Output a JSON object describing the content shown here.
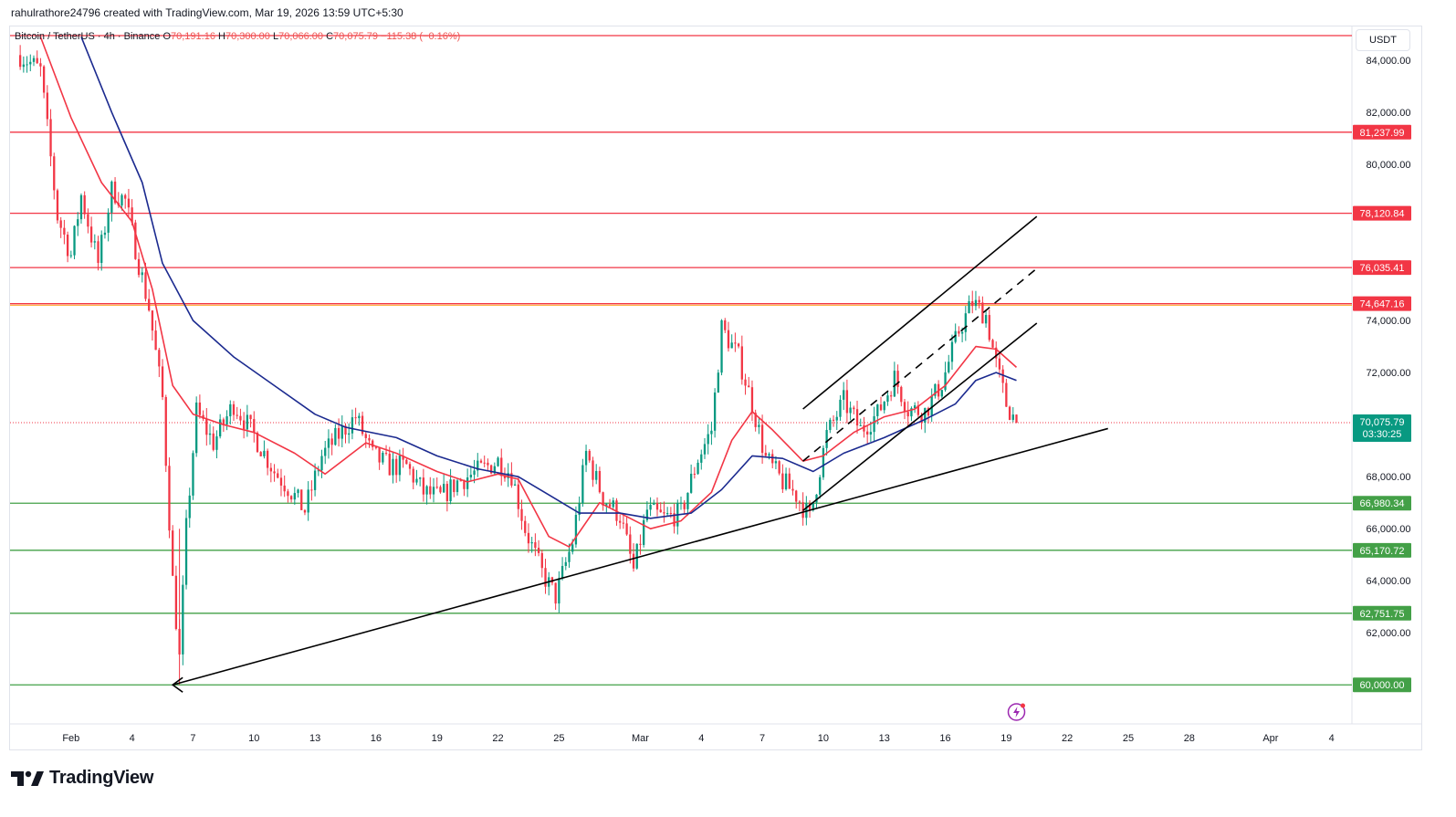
{
  "header": {
    "credit": "rahulrathore24796 created with TradingView.com, Mar 19, 2026 13:59 UTC+5:30",
    "symbol": "Bitcoin / TetherUS · 4h · Binance",
    "open_label": "O",
    "open": "70,191.16",
    "high_label": "H",
    "high": "70,300.00",
    "low_label": "L",
    "low": "70,066.00",
    "close_label": "C",
    "close": "70,075.79",
    "change": "−115.38 (−0.16%)"
  },
  "price_unit": "USDT",
  "brand": "TradingView",
  "colors": {
    "up": "#089981",
    "down": "#f23645",
    "ema_fast": "#f23645",
    "ema_slow": "#1b2a8f",
    "resistance": "#f23645",
    "support": "#43a047",
    "trend": "#000000"
  },
  "chart_data": {
    "type": "candlestick",
    "timeframe": "4h",
    "x_range": [
      "2026-01-29T00:00",
      "2026-04-05T00:00"
    ],
    "ylim": [
      58500,
      85300
    ],
    "y_ticks": [
      {
        "value": 84000,
        "label": "84,000.00"
      },
      {
        "value": 82000,
        "label": "82,000.00"
      },
      {
        "value": 80000,
        "label": "80,000.00"
      },
      {
        "value": 74000,
        "label": "74,000.00"
      },
      {
        "value": 72000,
        "label": "72,000.00"
      },
      {
        "value": 68000,
        "label": "68,000.00"
      },
      {
        "value": 66000,
        "label": "66,000.00"
      },
      {
        "value": 64000,
        "label": "64,000.00"
      },
      {
        "value": 62000,
        "label": "62,000.00"
      }
    ],
    "x_ticks": [
      {
        "date": "2026-02-01",
        "label": "Feb"
      },
      {
        "date": "2026-02-04",
        "label": "4"
      },
      {
        "date": "2026-02-07",
        "label": "7"
      },
      {
        "date": "2026-02-10",
        "label": "10"
      },
      {
        "date": "2026-02-13",
        "label": "13"
      },
      {
        "date": "2026-02-16",
        "label": "16"
      },
      {
        "date": "2026-02-19",
        "label": "19"
      },
      {
        "date": "2026-02-22",
        "label": "22"
      },
      {
        "date": "2026-02-25",
        "label": "25"
      },
      {
        "date": "2026-03-01",
        "label": "Mar"
      },
      {
        "date": "2026-03-04",
        "label": "4"
      },
      {
        "date": "2026-03-07",
        "label": "7"
      },
      {
        "date": "2026-03-10",
        "label": "10"
      },
      {
        "date": "2026-03-13",
        "label": "13"
      },
      {
        "date": "2026-03-16",
        "label": "16"
      },
      {
        "date": "2026-03-19",
        "label": "19"
      },
      {
        "date": "2026-03-22",
        "label": "22"
      },
      {
        "date": "2026-03-25",
        "label": "25"
      },
      {
        "date": "2026-03-28",
        "label": "28"
      },
      {
        "date": "2026-04-01",
        "label": "Apr"
      },
      {
        "date": "2026-04-04",
        "label": "4"
      }
    ],
    "horizontal_levels": [
      {
        "value": 84950,
        "label": "",
        "kind": "resistance"
      },
      {
        "value": 81237.99,
        "label": "81,237.99",
        "kind": "resistance"
      },
      {
        "value": 78120.84,
        "label": "78,120.84",
        "kind": "resistance"
      },
      {
        "value": 76035.41,
        "label": "76,035.41",
        "kind": "resistance"
      },
      {
        "value": 74647.16,
        "label": "74,647.16",
        "kind": "resistance"
      },
      {
        "value": 66980.34,
        "label": "66,980.34",
        "kind": "support"
      },
      {
        "value": 65170.72,
        "label": "65,170.72",
        "kind": "support"
      },
      {
        "value": 62751.75,
        "label": "62,751.75",
        "kind": "support"
      },
      {
        "value": 60000.0,
        "label": "60,000.00",
        "kind": "support"
      }
    ],
    "last_price": {
      "value": 70075.79,
      "label": "70,075.79",
      "countdown": "03:30:25"
    },
    "trendlines": [
      {
        "name": "rising-support",
        "from": [
          "2026-02-06T00:00",
          60000
        ],
        "to": [
          "2026-03-24T00:00",
          69850
        ],
        "style": "solid",
        "arrow_at_start": true
      },
      {
        "name": "channel-upper",
        "from": [
          "2026-03-09T00:00",
          70600
        ],
        "to": [
          "2026-03-20T12:00",
          78000
        ],
        "style": "solid"
      },
      {
        "name": "channel-middle",
        "from": [
          "2026-03-09T00:00",
          68600
        ],
        "to": [
          "2026-03-20T12:00",
          76000
        ],
        "style": "dashed"
      },
      {
        "name": "channel-lower",
        "from": [
          "2026-03-09T00:00",
          66700
        ],
        "to": [
          "2026-03-20T12:00",
          73900
        ],
        "style": "solid"
      }
    ],
    "candles_anchor": [
      [
        "2026-01-29T12:00",
        84200
      ],
      [
        "2026-01-30T12:00",
        83600
      ],
      [
        "2026-01-31T08:00",
        78000
      ],
      [
        "2026-02-01T00:00",
        76500
      ],
      [
        "2026-02-01T12:00",
        78800
      ],
      [
        "2026-02-02T08:00",
        76200
      ],
      [
        "2026-02-03T00:00",
        79000
      ],
      [
        "2026-02-03T16:00",
        78600
      ],
      [
        "2026-02-04T08:00",
        76200
      ],
      [
        "2026-02-04T20:00",
        74500
      ],
      [
        "2026-02-05T12:00",
        71000
      ],
      [
        "2026-02-06T00:00",
        64000
      ],
      [
        "2026-02-06T08:00",
        61000
      ],
      [
        "2026-02-06T16:00",
        66000
      ],
      [
        "2026-02-07T04:00",
        70500
      ],
      [
        "2026-02-08T00:00",
        69300
      ],
      [
        "2026-02-09T00:00",
        70800
      ],
      [
        "2026-02-10T00:00",
        69600
      ],
      [
        "2026-02-11T00:00",
        68200
      ],
      [
        "2026-02-11T16:00",
        67600
      ],
      [
        "2026-02-12T12:00",
        66700
      ],
      [
        "2026-02-13T08:00",
        68800
      ],
      [
        "2026-02-14T04:00",
        69600
      ],
      [
        "2026-02-15T00:00",
        70300
      ],
      [
        "2026-02-15T20:00",
        68800
      ],
      [
        "2026-02-16T16:00",
        68400
      ],
      [
        "2026-02-17T12:00",
        68400
      ],
      [
        "2026-02-18T08:00",
        67400
      ],
      [
        "2026-02-19T04:00",
        67200
      ],
      [
        "2026-02-20T00:00",
        67800
      ],
      [
        "2026-02-21T00:00",
        68200
      ],
      [
        "2026-02-22T00:00",
        68600
      ],
      [
        "2026-02-22T16:00",
        68100
      ],
      [
        "2026-02-23T08:00",
        66000
      ],
      [
        "2026-02-24T04:00",
        64300
      ],
      [
        "2026-02-24T20:00",
        63400
      ],
      [
        "2026-02-25T16:00",
        65500
      ],
      [
        "2026-02-26T08:00",
        68900
      ],
      [
        "2026-02-27T04:00",
        67200
      ],
      [
        "2026-02-28T00:00",
        66500
      ],
      [
        "2026-02-28T16:00",
        64400
      ],
      [
        "2026-03-01T08:00",
        66700
      ],
      [
        "2026-03-02T04:00",
        66400
      ],
      [
        "2026-03-03T00:00",
        66600
      ],
      [
        "2026-03-03T20:00",
        68700
      ],
      [
        "2026-03-04T12:00",
        69800
      ],
      [
        "2026-03-05T00:00",
        73700
      ],
      [
        "2026-03-05T20:00",
        72600
      ],
      [
        "2026-03-06T12:00",
        70800
      ],
      [
        "2026-03-07T04:00",
        68700
      ],
      [
        "2026-03-08T00:00",
        67800
      ],
      [
        "2026-03-08T16:00",
        67300
      ],
      [
        "2026-03-09T08:00",
        66400
      ],
      [
        "2026-03-10T04:00",
        69600
      ],
      [
        "2026-03-11T00:00",
        70900
      ],
      [
        "2026-03-11T20:00",
        69800
      ],
      [
        "2026-03-12T16:00",
        70400
      ],
      [
        "2026-03-13T12:00",
        71800
      ],
      [
        "2026-03-14T04:00",
        70600
      ],
      [
        "2026-03-15T00:00",
        70500
      ],
      [
        "2026-03-15T20:00",
        71600
      ],
      [
        "2026-03-16T16:00",
        73600
      ],
      [
        "2026-03-17T08:00",
        74700
      ],
      [
        "2026-03-18T00:00",
        74200
      ],
      [
        "2026-03-18T12:00",
        72300
      ],
      [
        "2026-03-19T00:00",
        70800
      ],
      [
        "2026-03-19T12:00",
        70075.79
      ]
    ],
    "ema_fast_anchor": [
      [
        "2026-01-30T12:00",
        84900
      ],
      [
        "2026-02-01T00:00",
        81800
      ],
      [
        "2026-02-02T12:00",
        79300
      ],
      [
        "2026-02-04T00:00",
        77800
      ],
      [
        "2026-02-05T00:00",
        75200
      ],
      [
        "2026-02-06T00:00",
        71500
      ],
      [
        "2026-02-07T00:00",
        70400
      ],
      [
        "2026-02-08T12:00",
        70000
      ],
      [
        "2026-02-10T00:00",
        69700
      ],
      [
        "2026-02-12T00:00",
        68900
      ],
      [
        "2026-02-13T12:00",
        68100
      ],
      [
        "2026-02-14T12:00",
        68700
      ],
      [
        "2026-02-15T12:00",
        69300
      ],
      [
        "2026-02-17T00:00",
        68900
      ],
      [
        "2026-02-19T00:00",
        68200
      ],
      [
        "2026-02-20T12:00",
        67800
      ],
      [
        "2026-02-22T00:00",
        68100
      ],
      [
        "2026-02-23T00:00",
        67900
      ],
      [
        "2026-02-24T12:00",
        65700
      ],
      [
        "2026-02-25T12:00",
        65300
      ],
      [
        "2026-02-27T00:00",
        67000
      ],
      [
        "2026-02-28T12:00",
        66400
      ],
      [
        "2026-03-01T12:00",
        66000
      ],
      [
        "2026-03-03T00:00",
        66300
      ],
      [
        "2026-03-04T12:00",
        67400
      ],
      [
        "2026-03-05T12:00",
        69400
      ],
      [
        "2026-03-06T12:00",
        70500
      ],
      [
        "2026-03-07T12:00",
        69800
      ],
      [
        "2026-03-09T00:00",
        68600
      ],
      [
        "2026-03-10T00:00",
        68800
      ],
      [
        "2026-03-11T12:00",
        69700
      ],
      [
        "2026-03-13T00:00",
        70300
      ],
      [
        "2026-03-14T12:00",
        70600
      ],
      [
        "2026-03-16T00:00",
        71500
      ],
      [
        "2026-03-17T12:00",
        73000
      ],
      [
        "2026-03-18T12:00",
        72900
      ],
      [
        "2026-03-19T12:00",
        72200
      ]
    ],
    "ema_slow_anchor": [
      [
        "2026-02-01T12:00",
        84900
      ],
      [
        "2026-02-03T00:00",
        82000
      ],
      [
        "2026-02-04T12:00",
        79300
      ],
      [
        "2026-02-05T12:00",
        76200
      ],
      [
        "2026-02-07T00:00",
        74000
      ],
      [
        "2026-02-09T00:00",
        72600
      ],
      [
        "2026-02-11T00:00",
        71500
      ],
      [
        "2026-02-13T00:00",
        70400
      ],
      [
        "2026-02-14T12:00",
        69900
      ],
      [
        "2026-02-17T00:00",
        69500
      ],
      [
        "2026-02-19T00:00",
        68800
      ],
      [
        "2026-02-21T00:00",
        68300
      ],
      [
        "2026-02-23T00:00",
        68000
      ],
      [
        "2026-02-24T12:00",
        67300
      ],
      [
        "2026-02-26T00:00",
        66600
      ],
      [
        "2026-02-28T00:00",
        66600
      ],
      [
        "2026-03-01T12:00",
        66400
      ],
      [
        "2026-03-03T12:00",
        66600
      ],
      [
        "2026-03-05T00:00",
        67500
      ],
      [
        "2026-03-06T12:00",
        68800
      ],
      [
        "2026-03-08T00:00",
        68700
      ],
      [
        "2026-03-09T12:00",
        68200
      ],
      [
        "2026-03-11T00:00",
        68900
      ],
      [
        "2026-03-13T00:00",
        69500
      ],
      [
        "2026-03-15T00:00",
        70200
      ],
      [
        "2026-03-16T12:00",
        70800
      ],
      [
        "2026-03-17T12:00",
        71700
      ],
      [
        "2026-03-18T12:00",
        72000
      ],
      [
        "2026-03-19T12:00",
        71700
      ]
    ]
  }
}
